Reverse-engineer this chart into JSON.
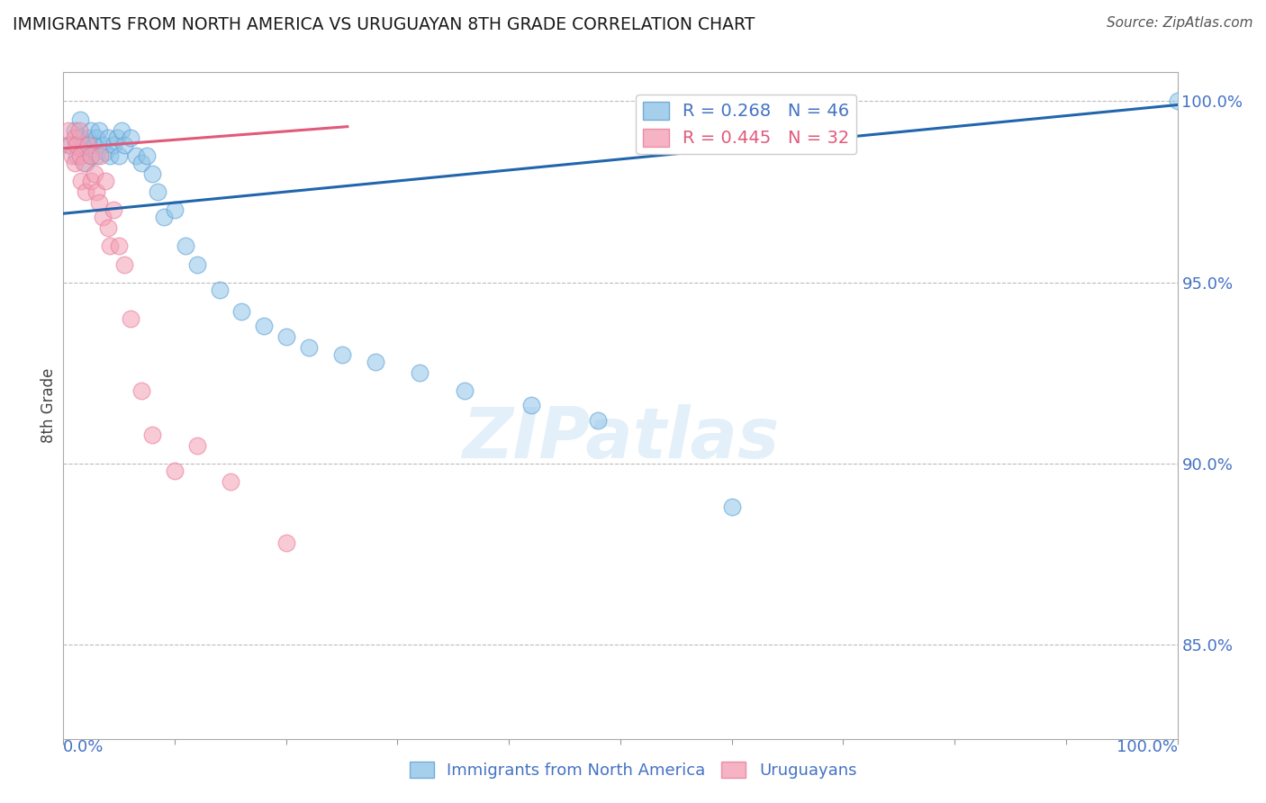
{
  "title": "IMMIGRANTS FROM NORTH AMERICA VS URUGUAYAN 8TH GRADE CORRELATION CHART",
  "source": "Source: ZipAtlas.com",
  "ylabel": "8th Grade",
  "R_blue": 0.268,
  "N_blue": 46,
  "R_pink": 0.445,
  "N_pink": 32,
  "legend_blue": "Immigrants from North America",
  "legend_pink": "Uruguayans",
  "blue_color": "#90c4e8",
  "pink_color": "#f4a0b5",
  "blue_edge_color": "#5a9fd4",
  "pink_edge_color": "#e87a99",
  "blue_line_color": "#2166ac",
  "pink_line_color": "#e05a7a",
  "title_color": "#1a1a1a",
  "axis_label_color": "#4472c4",
  "xlim": [
    0.0,
    1.0
  ],
  "ylim": [
    0.824,
    1.008
  ],
  "yticks": [
    0.85,
    0.9,
    0.95,
    1.0
  ],
  "ytick_labels": [
    "85.0%",
    "90.0%",
    "95.0%",
    "100.0%"
  ],
  "blue_x": [
    0.005,
    0.01,
    0.012,
    0.015,
    0.015,
    0.018,
    0.02,
    0.022,
    0.025,
    0.025,
    0.028,
    0.03,
    0.03,
    0.032,
    0.035,
    0.038,
    0.04,
    0.042,
    0.045,
    0.048,
    0.05,
    0.052,
    0.055,
    0.06,
    0.065,
    0.07,
    0.075,
    0.08,
    0.085,
    0.09,
    0.1,
    0.11,
    0.12,
    0.14,
    0.16,
    0.18,
    0.2,
    0.22,
    0.25,
    0.28,
    0.32,
    0.36,
    0.42,
    0.48,
    0.6,
    1.0
  ],
  "blue_y": [
    0.988,
    0.992,
    0.985,
    0.99,
    0.995,
    0.988,
    0.983,
    0.99,
    0.992,
    0.985,
    0.988,
    0.99,
    0.985,
    0.992,
    0.988,
    0.986,
    0.99,
    0.985,
    0.988,
    0.99,
    0.985,
    0.992,
    0.988,
    0.99,
    0.985,
    0.983,
    0.985,
    0.98,
    0.975,
    0.968,
    0.97,
    0.96,
    0.955,
    0.948,
    0.942,
    0.938,
    0.935,
    0.932,
    0.93,
    0.928,
    0.925,
    0.92,
    0.916,
    0.912,
    0.888,
    1.0
  ],
  "pink_x": [
    0.005,
    0.006,
    0.008,
    0.01,
    0.01,
    0.012,
    0.014,
    0.015,
    0.016,
    0.018,
    0.02,
    0.022,
    0.025,
    0.025,
    0.028,
    0.03,
    0.032,
    0.033,
    0.035,
    0.038,
    0.04,
    0.042,
    0.045,
    0.05,
    0.055,
    0.06,
    0.07,
    0.08,
    0.1,
    0.12,
    0.15,
    0.2
  ],
  "pink_y": [
    0.992,
    0.988,
    0.985,
    0.983,
    0.99,
    0.988,
    0.992,
    0.985,
    0.978,
    0.983,
    0.975,
    0.988,
    0.985,
    0.978,
    0.98,
    0.975,
    0.972,
    0.985,
    0.968,
    0.978,
    0.965,
    0.96,
    0.97,
    0.96,
    0.955,
    0.94,
    0.92,
    0.908,
    0.898,
    0.905,
    0.895,
    0.878
  ],
  "blue_line_x0": 0.0,
  "blue_line_y0": 0.969,
  "blue_line_x1": 1.0,
  "blue_line_y1": 0.999,
  "pink_line_x0": 0.0,
  "pink_line_y0": 0.987,
  "pink_line_x1": 0.255,
  "pink_line_y1": 0.993
}
